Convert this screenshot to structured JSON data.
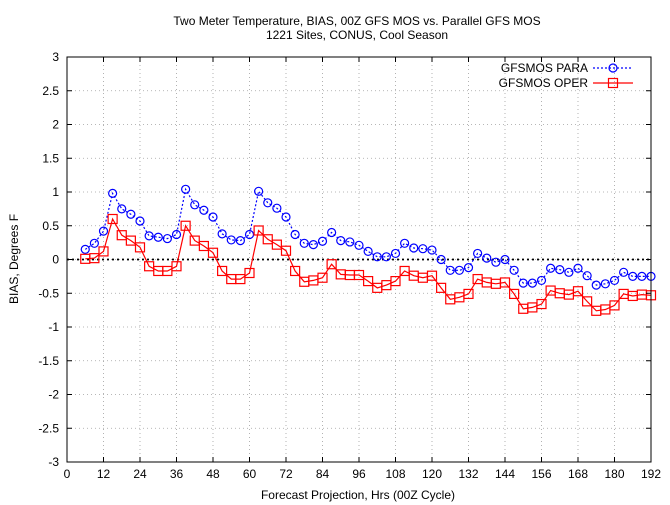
{
  "chart_data": {
    "type": "line",
    "title": "Two Meter Temperature, BIAS, 00Z GFS MOS vs. Parallel GFS MOS",
    "subtitle": "1221 Sites, CONUS, Cool Season",
    "xlabel": "Forecast Projection, Hrs (00Z Cycle)",
    "ylabel": "BIAS, Degrees F",
    "xlim": [
      0,
      192
    ],
    "ylim": [
      -3,
      3
    ],
    "xticks": [
      0,
      12,
      24,
      36,
      48,
      60,
      72,
      84,
      96,
      108,
      120,
      132,
      144,
      156,
      168,
      180,
      192
    ],
    "yticks": [
      -3,
      -2.5,
      -2,
      -1.5,
      -1,
      -0.5,
      0,
      0.5,
      1,
      1.5,
      2,
      2.5,
      3
    ],
    "grid": true,
    "legend_position": "top-right",
    "zero_line": true,
    "series": [
      {
        "name": "GFSMOS PARA",
        "color": "#0000ff",
        "marker": "circle",
        "line_style": "dotted",
        "x": [
          6,
          9,
          12,
          15,
          18,
          21,
          24,
          27,
          30,
          33,
          36,
          39,
          42,
          45,
          48,
          51,
          54,
          57,
          60,
          63,
          66,
          69,
          72,
          75,
          78,
          81,
          84,
          87,
          90,
          93,
          96,
          99,
          102,
          105,
          108,
          111,
          114,
          117,
          120,
          123,
          126,
          129,
          132,
          135,
          138,
          141,
          144,
          147,
          150,
          153,
          156,
          159,
          162,
          165,
          168,
          171,
          174,
          177,
          180,
          183,
          186,
          189,
          192
        ],
        "values": [
          0.15,
          0.24,
          0.42,
          0.98,
          0.75,
          0.67,
          0.57,
          0.35,
          0.33,
          0.31,
          0.37,
          1.04,
          0.81,
          0.73,
          0.63,
          0.38,
          0.29,
          0.28,
          0.37,
          1.01,
          0.84,
          0.76,
          0.63,
          0.37,
          0.24,
          0.22,
          0.27,
          0.4,
          0.28,
          0.26,
          0.21,
          0.12,
          0.04,
          0.04,
          0.09,
          0.24,
          0.17,
          0.16,
          0.14,
          0.0,
          -0.16,
          -0.16,
          -0.12,
          0.09,
          0.02,
          -0.04,
          0.0,
          -0.16,
          -0.35,
          -0.35,
          -0.31,
          -0.13,
          -0.15,
          -0.19,
          -0.13,
          -0.24,
          -0.38,
          -0.36,
          -0.31,
          -0.19,
          -0.25,
          -0.25,
          -0.25
        ]
      },
      {
        "name": "GFSMOS OPER",
        "color": "#ff0000",
        "marker": "square",
        "line_style": "solid",
        "x": [
          6,
          9,
          12,
          15,
          18,
          21,
          24,
          27,
          30,
          33,
          36,
          39,
          42,
          45,
          48,
          51,
          54,
          57,
          60,
          63,
          66,
          69,
          72,
          75,
          78,
          81,
          84,
          87,
          90,
          93,
          96,
          99,
          102,
          105,
          108,
          111,
          114,
          117,
          120,
          123,
          126,
          129,
          132,
          135,
          138,
          141,
          144,
          147,
          150,
          153,
          156,
          159,
          162,
          165,
          168,
          171,
          174,
          177,
          180,
          183,
          186,
          189,
          192
        ],
        "values": [
          0.01,
          0.02,
          0.12,
          0.6,
          0.36,
          0.28,
          0.18,
          -0.1,
          -0.17,
          -0.17,
          -0.1,
          0.5,
          0.28,
          0.2,
          0.1,
          -0.17,
          -0.29,
          -0.29,
          -0.2,
          0.43,
          0.3,
          0.22,
          0.13,
          -0.17,
          -0.33,
          -0.31,
          -0.27,
          -0.07,
          -0.22,
          -0.23,
          -0.23,
          -0.32,
          -0.42,
          -0.38,
          -0.32,
          -0.17,
          -0.24,
          -0.27,
          -0.24,
          -0.42,
          -0.59,
          -0.56,
          -0.51,
          -0.29,
          -0.34,
          -0.36,
          -0.34,
          -0.51,
          -0.73,
          -0.71,
          -0.66,
          -0.46,
          -0.5,
          -0.52,
          -0.47,
          -0.62,
          -0.76,
          -0.74,
          -0.68,
          -0.51,
          -0.54,
          -0.52,
          -0.53
        ]
      }
    ]
  }
}
